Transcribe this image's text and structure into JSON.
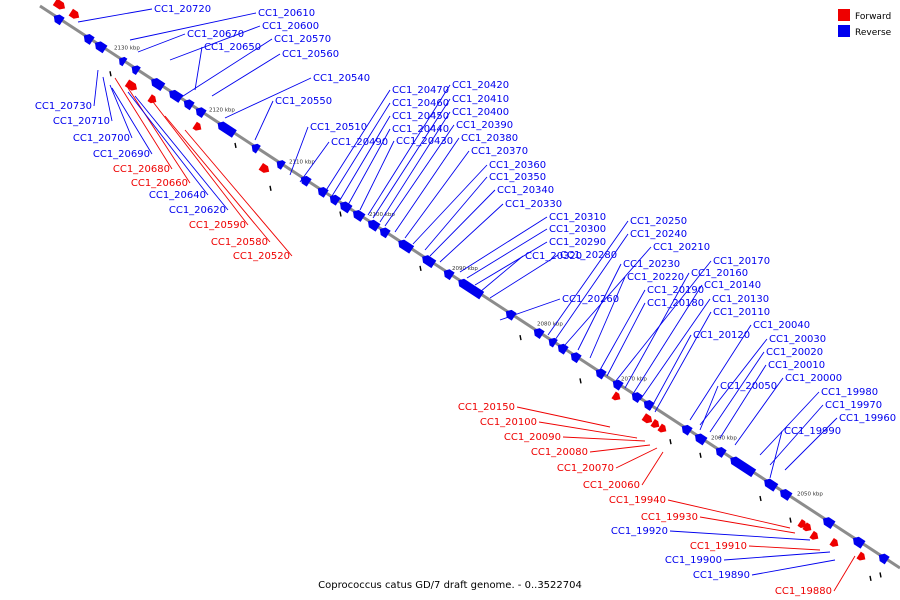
{
  "colors": {
    "forward": "#ee0000",
    "reverse": "#0000ee",
    "axis": "#8c8c8c"
  },
  "legend": {
    "forward_label": "Forward",
    "reverse_label": "Reverse"
  },
  "caption": "Coprococcus catus GD/7 draft genome. - 0..3522704",
  "tick_labels": [
    "2130 kbp",
    "2120 kbp",
    "2110 kbp",
    "2100 kbp",
    "2090 kbp",
    "2080 kbp",
    "2070 kbp",
    "2060 kbp",
    "2050 kbp"
  ],
  "labels_forward": [
    "CC1_20680",
    "CC1_20660",
    "CC1_20590",
    "CC1_20580",
    "CC1_20520",
    "CC1_20150",
    "CC1_20100",
    "CC1_20090",
    "CC1_20080",
    "CC1_20070",
    "CC1_20060",
    "CC1_19940",
    "CC1_19930",
    "CC1_19910",
    "CC1_19880"
  ],
  "labels_reverse": [
    "CC1_20720",
    "CC1_20610",
    "CC1_20670",
    "CC1_20600",
    "CC1_20650",
    "CC1_20570",
    "CC1_20560",
    "CC1_20540",
    "CC1_20730",
    "CC1_20710",
    "CC1_20700",
    "CC1_20690",
    "CC1_20640",
    "CC1_20620",
    "CC1_20550",
    "CC1_20510",
    "CC1_20490",
    "CC1_20470",
    "CC1_20460",
    "CC1_20450",
    "CC1_20440",
    "CC1_20430",
    "CC1_20420",
    "CC1_20410",
    "CC1_20400",
    "CC1_20390",
    "CC1_20380",
    "CC1_20370",
    "CC1_20360",
    "CC1_20350",
    "CC1_20340",
    "CC1_20330",
    "CC1_20310",
    "CC1_20300",
    "CC1_20290",
    "CC1_20320",
    "CC1_20280",
    "CC1_20260",
    "CC1_20250",
    "CC1_20240",
    "CC1_20210",
    "CC1_20230",
    "CC1_20220",
    "CC1_20190",
    "CC1_20180",
    "CC1_20170",
    "CC1_20160",
    "CC1_20140",
    "CC1_20130",
    "CC1_20120",
    "CC1_20110",
    "CC1_20040",
    "CC1_20030",
    "CC1_20020",
    "CC1_20010",
    "CC1_20000",
    "CC1_20050",
    "CC1_19980",
    "CC1_19970",
    "CC1_19960",
    "CC1_19990",
    "CC1_19920",
    "CC1_19900",
    "CC1_19890"
  ]
}
